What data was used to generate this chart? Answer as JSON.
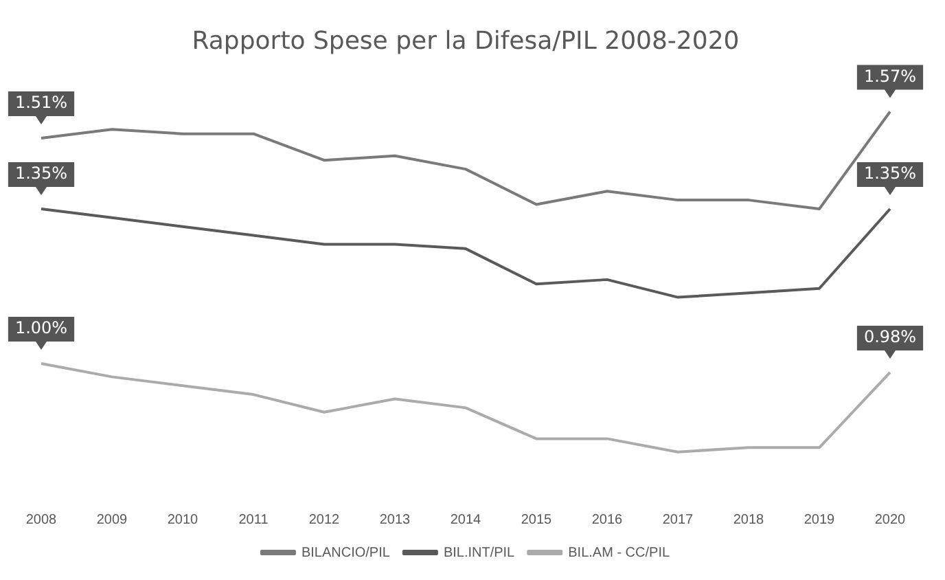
{
  "chart_data": {
    "type": "line",
    "title": "Rapporto Spese per la Difesa/PIL 2008-2020",
    "categories": [
      "2008",
      "2009",
      "2010",
      "2011",
      "2012",
      "2013",
      "2014",
      "2015",
      "2016",
      "2017",
      "2018",
      "2019",
      "2020"
    ],
    "series": [
      {
        "name": "BILANCIO/PIL",
        "color": "#7a7a7a",
        "values": [
          1.51,
          1.53,
          1.52,
          1.52,
          1.46,
          1.47,
          1.44,
          1.36,
          1.39,
          1.37,
          1.37,
          1.35,
          1.57
        ],
        "value_labels": [
          "1.51%",
          null,
          null,
          null,
          null,
          null,
          null,
          null,
          null,
          null,
          null,
          null,
          "1.57%"
        ]
      },
      {
        "name": "BIL.INT/PIL",
        "color": "#5a5a5a",
        "values": [
          1.35,
          1.33,
          1.31,
          1.29,
          1.27,
          1.27,
          1.26,
          1.18,
          1.19,
          1.15,
          1.16,
          1.17,
          1.35
        ],
        "value_labels": [
          "1.35%",
          null,
          null,
          null,
          null,
          null,
          null,
          null,
          null,
          null,
          null,
          null,
          "1.35%"
        ]
      },
      {
        "name": "BIL.AM - CC/PIL",
        "color": "#ababab",
        "values": [
          1.0,
          0.97,
          0.95,
          0.93,
          0.89,
          0.92,
          0.9,
          0.83,
          0.83,
          0.8,
          0.81,
          0.81,
          0.98
        ],
        "value_labels": [
          "1.00%",
          null,
          null,
          null,
          null,
          null,
          null,
          null,
          null,
          null,
          null,
          null,
          "0.98%"
        ]
      }
    ],
    "tick_labels": "x",
    "grid": false,
    "legend": "bottom",
    "marker": "none",
    "line_style": "solid"
  }
}
